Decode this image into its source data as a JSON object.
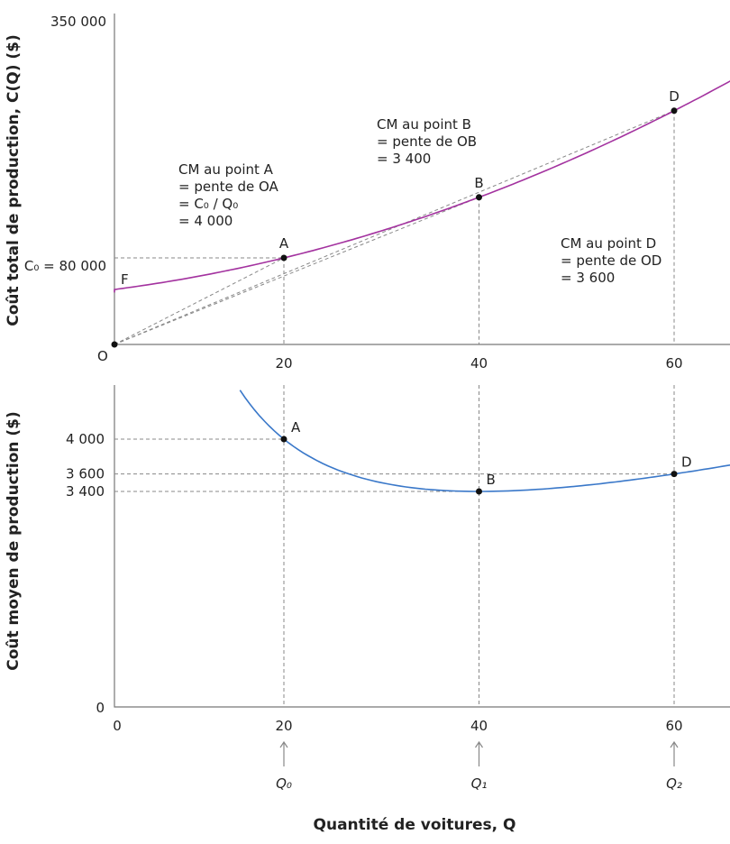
{
  "chart_data": [
    {
      "type": "line",
      "title": "",
      "ylabel": "Coût total de production, C(Q) ($)",
      "xlabel": "",
      "y_top_label": "350 000",
      "origin_label": "O",
      "c0_label": "C₀ = 80 000",
      "curve_label": "F",
      "x_ticks": [
        20,
        40,
        60
      ],
      "color": "#a3329f",
      "function": "C(Q) = 48000 + 1000Q + 30Q²",
      "points": [
        {
          "name": "A",
          "q": 20,
          "c": 80000
        },
        {
          "name": "B",
          "q": 40,
          "c": 136000
        },
        {
          "name": "D",
          "q": 60,
          "c": 216000
        }
      ],
      "annotations": {
        "A": [
          "CM au point A",
          "= pente de OA",
          "= C₀ / Q₀",
          "= 4 000"
        ],
        "B": [
          "CM au point B",
          "= pente de OB",
          "= 3 400"
        ],
        "D": [
          "CM au point D",
          "= pente de OD",
          "= 3 600"
        ]
      }
    },
    {
      "type": "line",
      "title": "",
      "ylabel": "Coût moyen de production ($)",
      "xlabel": "Quantité de voitures, Q",
      "y_ticks": [
        "4 000",
        "3 600",
        "3 400",
        "0"
      ],
      "x_ticks": [
        "0",
        "20",
        "40",
        "60"
      ],
      "color": "#3a78c9",
      "function": "CM(Q) = 48000/Q + 1000 + 30Q",
      "points": [
        {
          "name": "A",
          "q": 20,
          "cm": 4000
        },
        {
          "name": "B",
          "q": 40,
          "cm": 3400
        },
        {
          "name": "D",
          "q": 60,
          "cm": 3600
        }
      ],
      "q_markers": [
        "Q₀",
        "Q₁",
        "Q₂"
      ]
    }
  ]
}
